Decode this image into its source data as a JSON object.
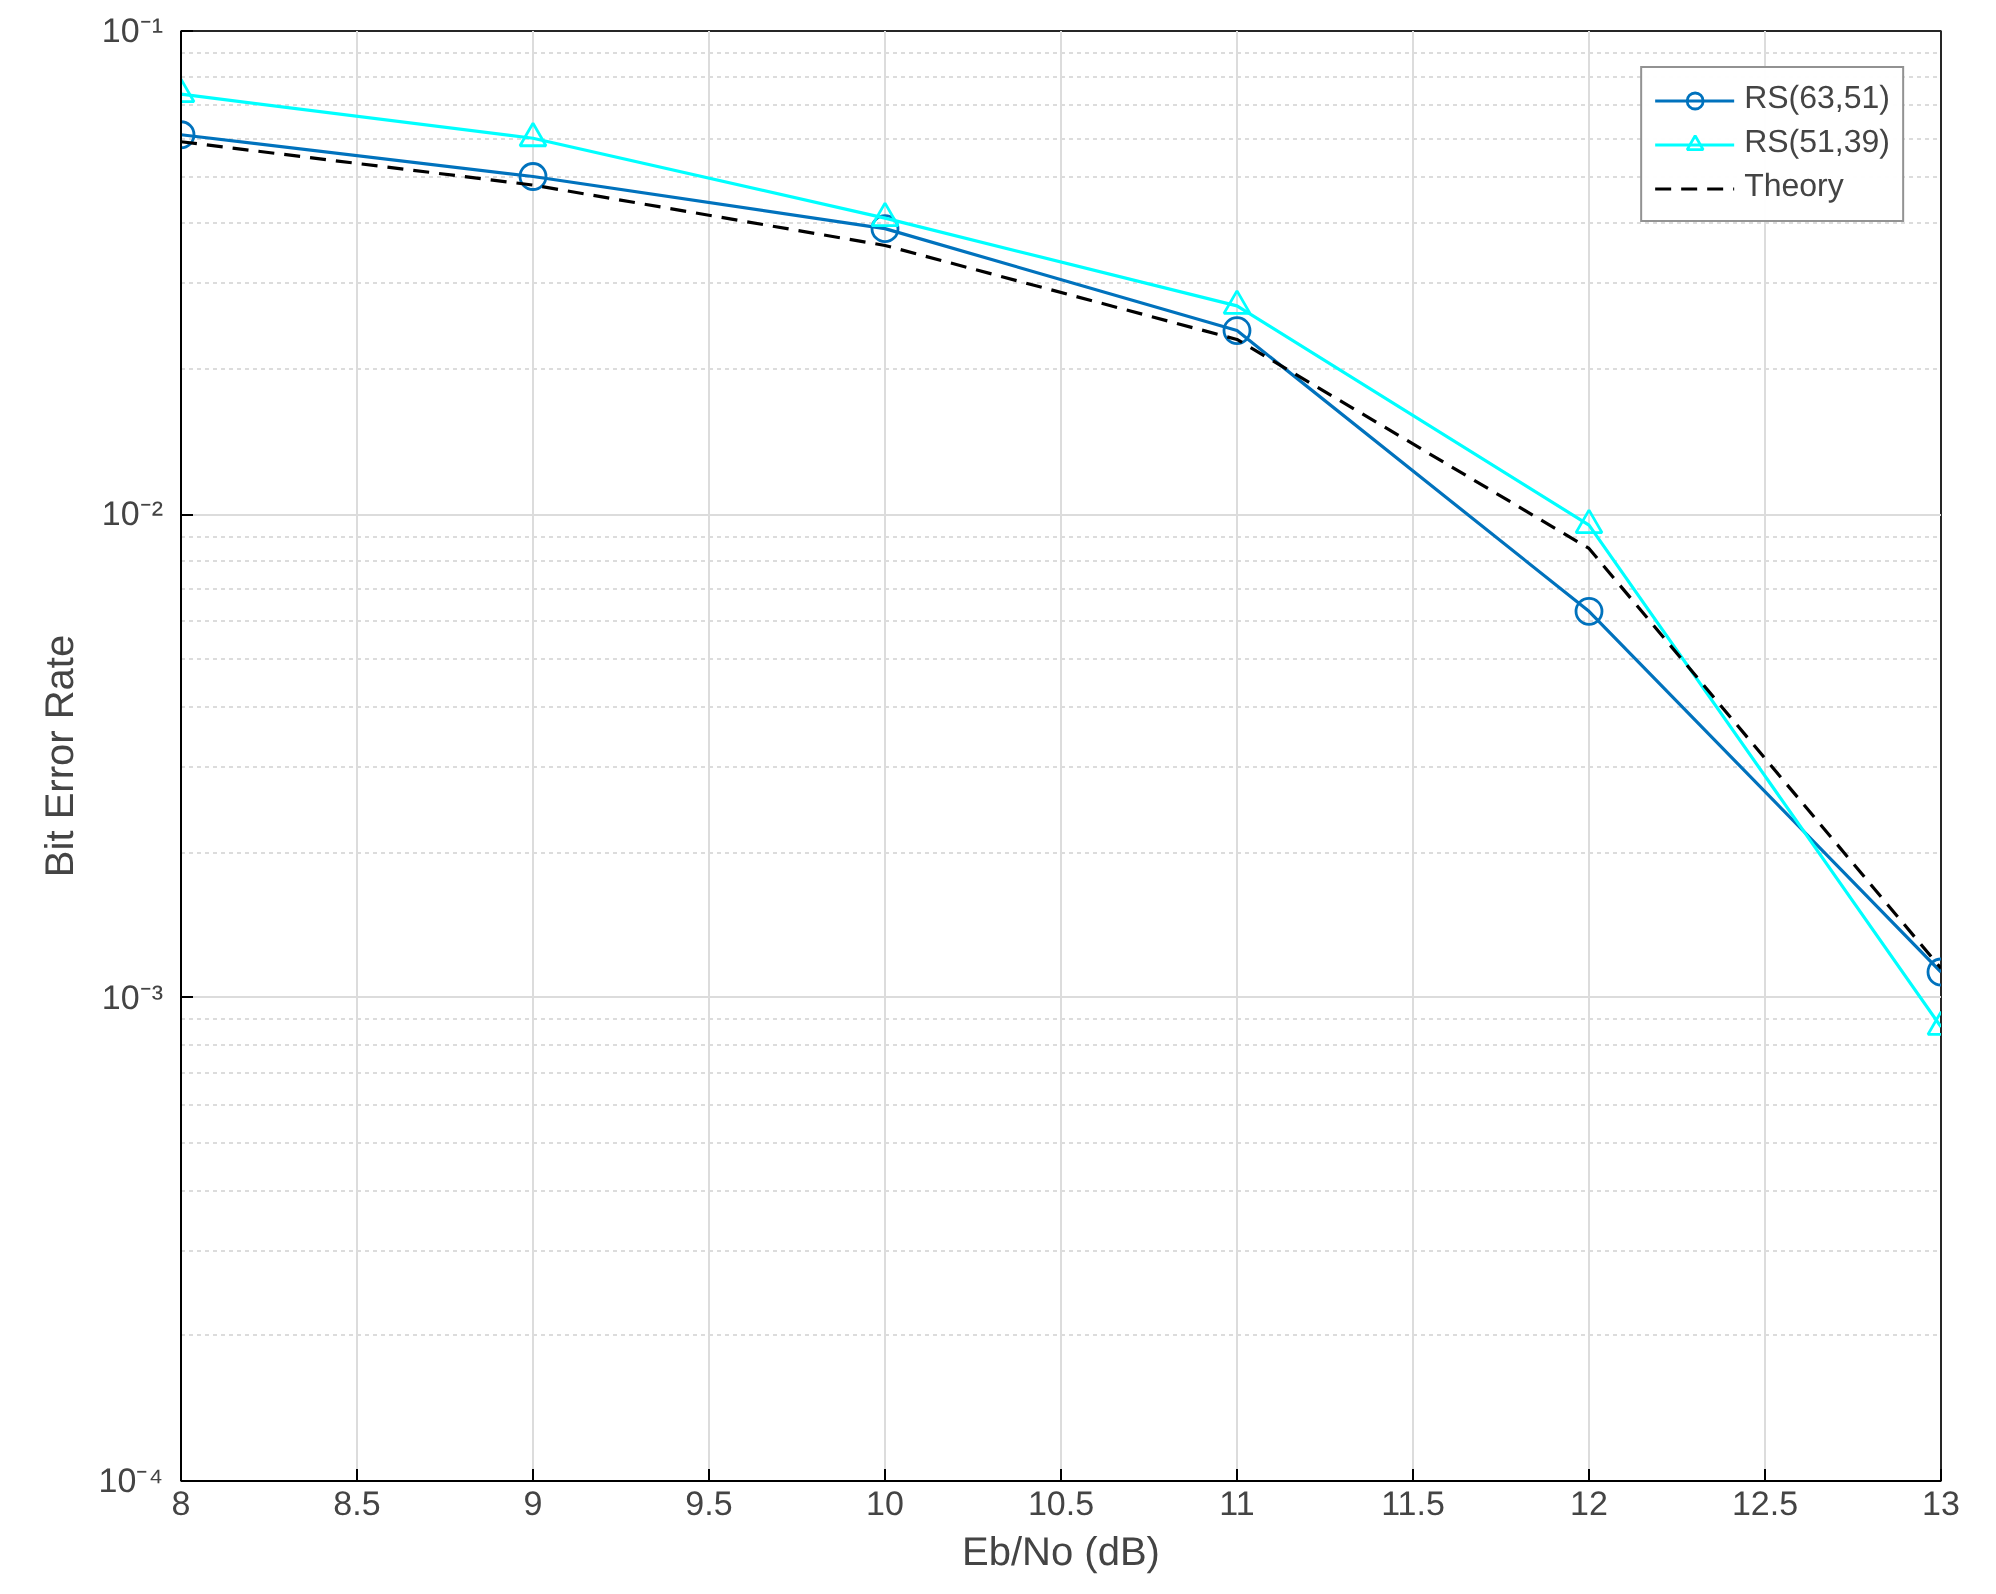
{
  "chart_data": {
    "type": "line",
    "xlabel": "Eb/No (dB)",
    "ylabel": "Bit Error Rate",
    "x": [
      8,
      9,
      10,
      11,
      12,
      13
    ],
    "series": [
      {
        "name": "RS(63,51)",
        "color": "#0072bd",
        "values": [
          0.061,
          0.05,
          0.039,
          0.024,
          0.0063,
          0.00113
        ],
        "marker": "circle",
        "line_style": "solid"
      },
      {
        "name": "RS(51,39)",
        "color": "#00ffff",
        "values": [
          0.074,
          0.06,
          0.041,
          0.027,
          0.0095,
          0.00087
        ],
        "marker": "triangle",
        "line_style": "solid"
      },
      {
        "name": "Theory",
        "color": "#000000",
        "values": [
          0.059,
          0.048,
          0.036,
          0.023,
          0.0085,
          0.00115
        ],
        "marker": "none",
        "line_style": "dashed"
      }
    ],
    "log": "y",
    "xlim": [
      8,
      13
    ],
    "ylim": [
      0.0001,
      0.1
    ],
    "xticks": [
      8,
      8.5,
      9,
      9.5,
      10,
      10.5,
      11,
      11.5,
      12,
      12.5,
      13
    ],
    "yticks": [
      {
        "value": 0.0001,
        "label": "10⁻⁴"
      },
      {
        "value": 0.001,
        "label": "10⁻³"
      },
      {
        "value": 0.01,
        "label": "10⁻²"
      },
      {
        "value": 0.1,
        "label": "10⁻¹"
      }
    ],
    "grid": true,
    "legend": "top right"
  }
}
